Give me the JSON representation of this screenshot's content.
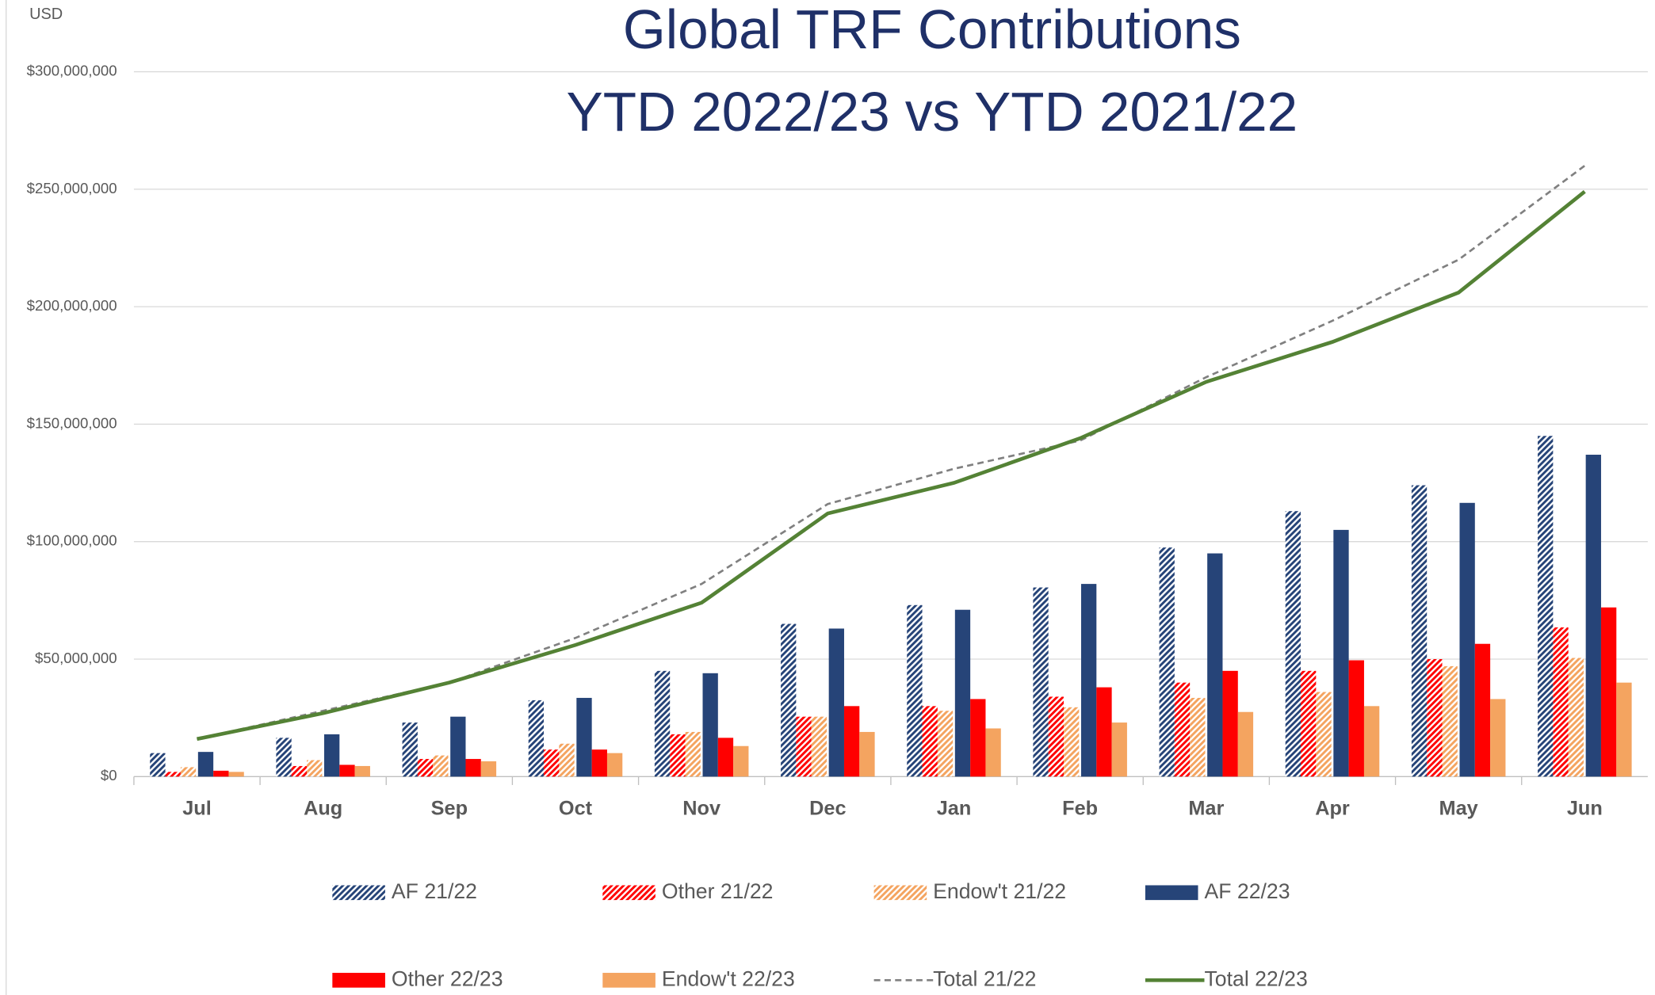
{
  "chart_data": {
    "type": "bar",
    "title": [
      "Global TRF Contributions",
      "YTD 2022/23 vs YTD 2021/22"
    ],
    "y_label": "USD",
    "categories": [
      "Jul",
      "Aug",
      "Sep",
      "Oct",
      "Nov",
      "Dec",
      "Jan",
      "Feb",
      "Mar",
      "Apr",
      "May",
      "Jun"
    ],
    "ylim": [
      0,
      300000000
    ],
    "yticks": [
      {
        "value": 0,
        "label": "$0"
      },
      {
        "value": 50000000,
        "label": "$50,000,000"
      },
      {
        "value": 100000000,
        "label": "$100,000,000"
      },
      {
        "value": 150000000,
        "label": "$150,000,000"
      },
      {
        "value": 200000000,
        "label": "$200,000,000"
      },
      {
        "value": 250000000,
        "label": "$250,000,000"
      },
      {
        "value": 300000000,
        "label": "$300,000,000"
      }
    ],
    "grid": true,
    "legend": "bottom",
    "series": [
      {
        "name": "AF 21/22",
        "type": "bar",
        "pattern": "hatch",
        "color": "#264478",
        "values": [
          10000000,
          16500000,
          23000000,
          32500000,
          45000000,
          65000000,
          73000000,
          80500000,
          97500000,
          113000000,
          124000000,
          145000000
        ]
      },
      {
        "name": "Other 21/22",
        "type": "bar",
        "pattern": "hatch",
        "color": "#ff0000",
        "values": [
          2000000,
          4500000,
          7500000,
          11500000,
          18000000,
          25500000,
          30000000,
          34000000,
          40000000,
          45000000,
          50000000,
          63500000
        ]
      },
      {
        "name": "Endow't 21/22",
        "type": "bar",
        "pattern": "hatch",
        "color": "#f4a460",
        "values": [
          4000000,
          7000000,
          9000000,
          14000000,
          19000000,
          25500000,
          28000000,
          29500000,
          33500000,
          36000000,
          47000000,
          50500000
        ]
      },
      {
        "name": "AF 22/23",
        "type": "bar",
        "pattern": "solid",
        "color": "#264478",
        "values": [
          10500000,
          18000000,
          25500000,
          33500000,
          44000000,
          63000000,
          71000000,
          82000000,
          95000000,
          105000000,
          116500000,
          137000000
        ]
      },
      {
        "name": "Other 22/23",
        "type": "bar",
        "pattern": "solid",
        "color": "#ff0000",
        "values": [
          2500000,
          5000000,
          7500000,
          11500000,
          16500000,
          30000000,
          33000000,
          38000000,
          45000000,
          49500000,
          56500000,
          72000000
        ]
      },
      {
        "name": "Endow't 22/23",
        "type": "bar",
        "pattern": "solid",
        "color": "#f4a460",
        "values": [
          2000000,
          4500000,
          6500000,
          10000000,
          13000000,
          19000000,
          20500000,
          23000000,
          27500000,
          30000000,
          33000000,
          40000000
        ]
      },
      {
        "name": "Total 21/22",
        "type": "line",
        "dashed": true,
        "color": "#808080",
        "values": [
          16000000,
          28000000,
          40000000,
          59000000,
          82000000,
          116000000,
          131000000,
          143000000,
          170000000,
          194000000,
          220000000,
          260000000
        ]
      },
      {
        "name": "Total 22/23",
        "type": "line",
        "dashed": false,
        "color": "#548235",
        "values": [
          16000000,
          27000000,
          40000000,
          56000000,
          74000000,
          112000000,
          125000000,
          144000000,
          168000000,
          185000000,
          206000000,
          249000000
        ]
      }
    ]
  }
}
